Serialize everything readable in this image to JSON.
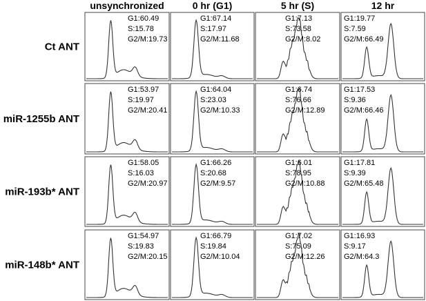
{
  "columns": [
    "unsynchronized",
    "0 hr   (G1)",
    "5 hr (S)",
    "12 hr"
  ],
  "rows": [
    {
      "label": "Ct ANT",
      "panels": [
        [
          "G1:60.49",
          "S:15.78",
          "G2/M:19.73"
        ],
        [
          "G1:67.14",
          "S:17.97",
          "G2/M:11.68"
        ],
        [
          "G1:7.13",
          "S:73.58",
          "G2/M:8.02"
        ],
        [
          "G1:19.77",
          "S:7.59",
          "G2/M:66.49"
        ]
      ]
    },
    {
      "label": "miR-1255b ANT",
      "panels": [
        [
          "G1:53.97",
          "S:19.97",
          "G2/M:20.41"
        ],
        [
          "G1:64.04",
          "S:23.03",
          "G2/M:10.33"
        ],
        [
          "G1:6.74",
          "S:76.66",
          "G2/M:12.89"
        ],
        [
          "G1:17.53",
          "S:9.36",
          "G2/M:66.46"
        ]
      ]
    },
    {
      "label": "miR-193b* ANT",
      "panels": [
        [
          "G1:58.05",
          "S:16.03",
          "G2/M:20.97"
        ],
        [
          "G1:66.26",
          "S:20.68",
          "G2/M:9.57"
        ],
        [
          "G1:6.01",
          "S:78.95",
          "G2/M:10.88"
        ],
        [
          "G1:17.81",
          "S:9.39",
          "G2/M:65.48"
        ]
      ]
    },
    {
      "label": "miR-148b* ANT",
      "panels": [
        [
          "G1:54.97",
          "S:19.83",
          "G2/M:20.15"
        ],
        [
          "G1:66.79",
          "S:19.84",
          "G2/M:10.04"
        ],
        [
          "G1:7.02",
          "S:75.09",
          "G2/M:12.26"
        ],
        [
          "G1:16.93",
          "S:9.17",
          "G2/M:64.3"
        ]
      ]
    }
  ]
}
